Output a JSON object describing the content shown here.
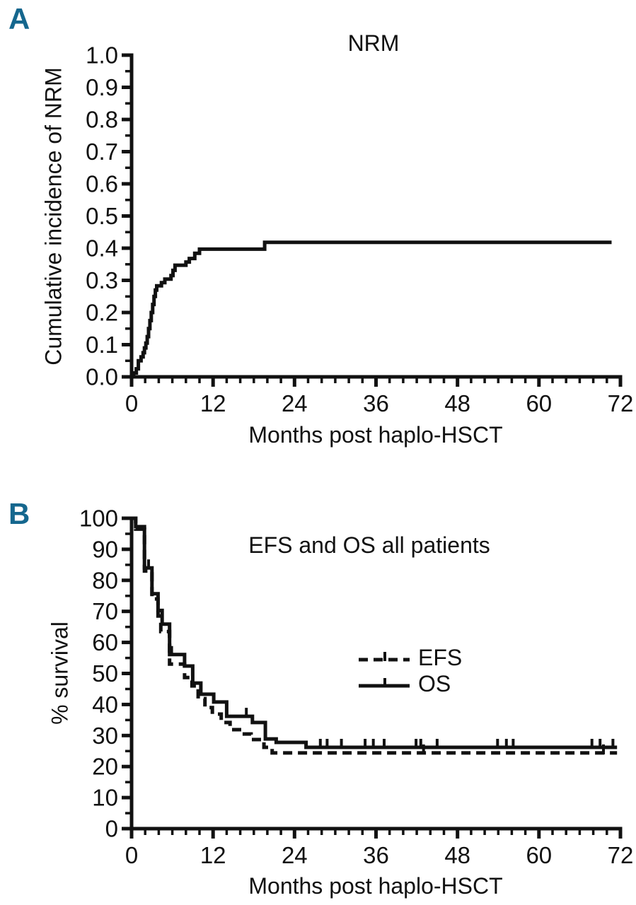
{
  "figure": {
    "background": "#ffffff",
    "ink": "#111111",
    "panel_label_color": "#15678e"
  },
  "panels": [
    {
      "label": "A"
    },
    {
      "label": "B"
    }
  ],
  "chart_data": [
    {
      "type": "line",
      "panel": "A",
      "title": "NRM",
      "xlabel": "Months post haplo-HSCT",
      "ylabel": "Cumulative incidence of NRM",
      "xlim": [
        0,
        72
      ],
      "ylim": [
        0,
        1
      ],
      "xticks": [
        0,
        12,
        24,
        36,
        48,
        60,
        72
      ],
      "xticklabels": [
        "0",
        "12",
        "24",
        "36",
        "48",
        "60",
        "72"
      ],
      "yticks": [
        0,
        0.1,
        0.2,
        0.3,
        0.4,
        0.5,
        0.6,
        0.7,
        0.8,
        0.9,
        1.0
      ],
      "yticklabels": [
        "0.0",
        "0.1",
        "0.2",
        "0.3",
        "0.4",
        "0.5",
        "0.6",
        "0.7",
        "0.8",
        "0.9",
        "1.0"
      ],
      "x_minor_step": 2,
      "y_minor_step": 0.05,
      "grid": false,
      "series": [
        {
          "name": "NRM",
          "line_style": "solid",
          "step": true,
          "end_x": 70.7,
          "points": [
            [
              0,
              0
            ],
            [
              0.3,
              0.012
            ],
            [
              0.7,
              0.025
            ],
            [
              1.0,
              0.05
            ],
            [
              1.4,
              0.062
            ],
            [
              1.7,
              0.075
            ],
            [
              1.9,
              0.09
            ],
            [
              2.1,
              0.105
            ],
            [
              2.3,
              0.125
            ],
            [
              2.5,
              0.15
            ],
            [
              2.7,
              0.175
            ],
            [
              2.9,
              0.2
            ],
            [
              3.1,
              0.225
            ],
            [
              3.3,
              0.25
            ],
            [
              3.5,
              0.27
            ],
            [
              3.7,
              0.283
            ],
            [
              4.4,
              0.293
            ],
            [
              4.9,
              0.304
            ],
            [
              5.8,
              0.315
            ],
            [
              6.1,
              0.331
            ],
            [
              6.4,
              0.347
            ],
            [
              8.0,
              0.357
            ],
            [
              8.5,
              0.368
            ],
            [
              9.3,
              0.384
            ],
            [
              10.0,
              0.397
            ],
            [
              19.6,
              0.418
            ]
          ],
          "censor_marks": []
        }
      ]
    },
    {
      "type": "line",
      "panel": "B",
      "title": "EFS and OS all patients",
      "xlabel": "Months post haplo-HSCT",
      "ylabel": "% survival",
      "xlim": [
        0,
        72
      ],
      "ylim": [
        0,
        100
      ],
      "xticks": [
        0,
        12,
        24,
        36,
        48,
        60,
        72
      ],
      "xticklabels": [
        "0",
        "12",
        "24",
        "36",
        "48",
        "60",
        "72"
      ],
      "yticks": [
        0,
        10,
        20,
        30,
        40,
        50,
        60,
        70,
        80,
        90,
        100
      ],
      "yticklabels": [
        "0",
        "10",
        "20",
        "30",
        "40",
        "50",
        "60",
        "70",
        "80",
        "90",
        "100"
      ],
      "x_minor_step": 2,
      "y_minor_step": 5,
      "grid": false,
      "legend_position": "center-right",
      "legend": [
        {
          "label": "EFS",
          "line_style": "dashed"
        },
        {
          "label": "OS",
          "line_style": "solid"
        }
      ],
      "series": [
        {
          "name": "EFS",
          "line_style": "dashed",
          "step": true,
          "end_x": 71.5,
          "points": [
            [
              0,
              100
            ],
            [
              0.6,
              96.5
            ],
            [
              1.9,
              83
            ],
            [
              3.0,
              74
            ],
            [
              3.9,
              68.5
            ],
            [
              4.3,
              63.5
            ],
            [
              5.6,
              53
            ],
            [
              7.8,
              48.7
            ],
            [
              8.9,
              46
            ],
            [
              9.8,
              41.9
            ],
            [
              10.8,
              39
            ],
            [
              11.9,
              36.9
            ],
            [
              13.2,
              34.2
            ],
            [
              14.5,
              31.9
            ],
            [
              16.2,
              30.5
            ],
            [
              17.6,
              28.7
            ],
            [
              19.5,
              26.2
            ],
            [
              20.7,
              24.4
            ]
          ],
          "censor_marks": [
            [
              43.0,
              24.4
            ],
            [
              69.5,
              24.4
            ]
          ]
        },
        {
          "name": "OS",
          "line_style": "solid",
          "step": true,
          "end_x": 71.5,
          "points": [
            [
              0,
              100
            ],
            [
              0.6,
              97.3
            ],
            [
              1.9,
              84
            ],
            [
              3.0,
              75.7
            ],
            [
              3.9,
              70.3
            ],
            [
              4.5,
              65.9
            ],
            [
              5.6,
              56.1
            ],
            [
              7.8,
              52.4
            ],
            [
              9.0,
              46.9
            ],
            [
              10.2,
              43.3
            ],
            [
              12.1,
              40.8
            ],
            [
              14.0,
              36.2
            ],
            [
              17.8,
              34.2
            ],
            [
              19.7,
              28.9
            ],
            [
              21.3,
              27.8
            ],
            [
              25.7,
              26.2
            ]
          ],
          "censor_marks": [
            [
              2.5,
              84
            ],
            [
              5.9,
              56.1
            ],
            [
              16.9,
              36.2
            ],
            [
              27.8,
              26.2
            ],
            [
              28.8,
              26.2
            ],
            [
              30.9,
              26.2
            ],
            [
              34.4,
              26.2
            ],
            [
              35.6,
              26.2
            ],
            [
              37.2,
              26.2
            ],
            [
              41.9,
              26.2
            ],
            [
              42.6,
              26.2
            ],
            [
              45.0,
              26.2
            ],
            [
              53.9,
              26.2
            ],
            [
              55.2,
              26.2
            ],
            [
              56.2,
              26.2
            ],
            [
              67.8,
              26.2
            ],
            [
              69.0,
              26.2
            ],
            [
              70.9,
              26.2
            ]
          ]
        }
      ]
    }
  ]
}
